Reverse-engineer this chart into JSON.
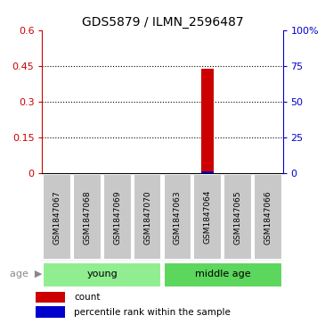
{
  "title": "GDS5879 / ILMN_2596487",
  "samples": [
    "GSM1847067",
    "GSM1847068",
    "GSM1847069",
    "GSM1847070",
    "GSM1847063",
    "GSM1847064",
    "GSM1847065",
    "GSM1847066"
  ],
  "red_values": [
    0,
    0,
    0,
    0,
    0,
    0.44,
    0,
    0
  ],
  "blue_values": [
    0,
    0,
    0,
    0,
    0,
    0.008,
    0,
    0
  ],
  "ylim_left": [
    0,
    0.6
  ],
  "ylim_right": [
    0,
    100
  ],
  "yticks_left": [
    0,
    0.15,
    0.3,
    0.45,
    0.6
  ],
  "ytick_labels_left": [
    "0",
    "0.15",
    "0.3",
    "0.45",
    "0.6"
  ],
  "yticks_right": [
    0,
    25,
    50,
    75,
    100
  ],
  "ytick_labels_right": [
    "0",
    "25",
    "50",
    "75",
    "100%"
  ],
  "groups": [
    {
      "label": "young",
      "start": 0,
      "end": 3,
      "color": "#90EE90"
    },
    {
      "label": "middle age",
      "start": 4,
      "end": 7,
      "color": "#5CD65C"
    }
  ],
  "bar_width": 0.4,
  "red_color": "#CC0000",
  "blue_color": "#0000CC",
  "bg_color": "#ffffff",
  "sample_box_color": "#C8C8C8",
  "legend_items": [
    {
      "label": "count",
      "color": "#CC0000"
    },
    {
      "label": "percentile rank within the sample",
      "color": "#0000CC"
    }
  ]
}
